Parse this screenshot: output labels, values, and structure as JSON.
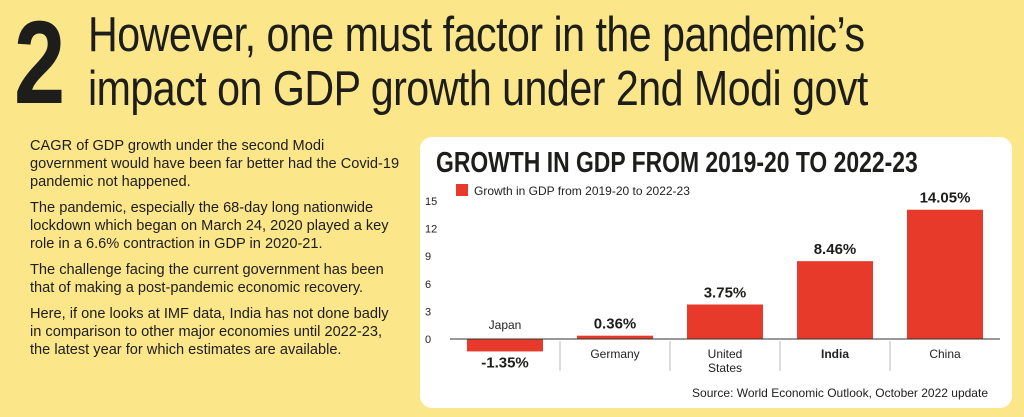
{
  "headline": {
    "number": "2",
    "line1": "However, one must factor in the pandemic’s",
    "line2": "impact on GDP growth under 2nd Modi govt"
  },
  "body": {
    "paragraphs": [
      "CAGR of GDP growth under the second Modi government would have been far better had the Covid-19 pandemic not happened.",
      "The pandemic, especially the 68-day long nationwide lockdown which began on March 24, 2020 played a key role in a 6.6% contraction in GDP in 2020-21.",
      "The challenge facing the current government has been that of making a post-pandemic economic recovery.",
      "Here, if one looks at IMF data, India has not done badly in comparison to other major economies until 2022-23, the latest year for which estimates are available."
    ]
  },
  "chart_data": {
    "type": "bar",
    "title": "GROWTH IN GDP FROM 2019-20 TO 2022-23",
    "legend": "Growth in GDP from 2019-20 to 2022-23",
    "categories": [
      "Japan",
      "Germany",
      "United States",
      "India",
      "China"
    ],
    "values": [
      -1.35,
      0.36,
      3.75,
      8.46,
      14.05
    ],
    "value_labels": [
      "-1.35%",
      "0.36%",
      "3.75%",
      "8.46%",
      "14.05%"
    ],
    "yticks": [
      0,
      3,
      6,
      9,
      12,
      15
    ],
    "ylim": [
      -2,
      15
    ],
    "highlight": "India",
    "bar_color": "#e83a2a",
    "source": "Source: World Economic Outlook, October 2022 update"
  }
}
